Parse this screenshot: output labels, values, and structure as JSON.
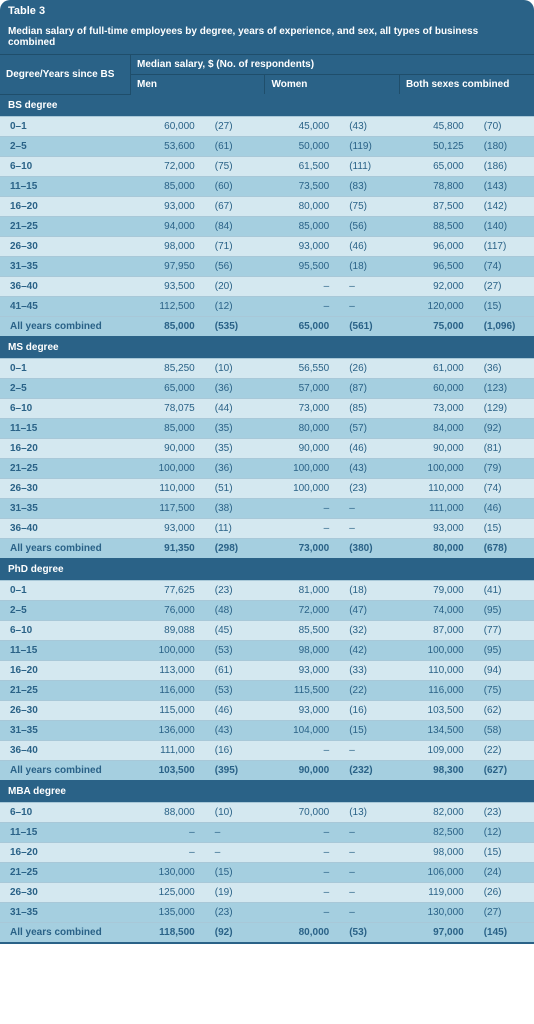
{
  "tableNumber": "Table 3",
  "title": "Median salary of full-time employees by degree, years of experience, and sex, all types of business combined",
  "headerTop": "Median salary, $ (No. of respondents)",
  "col0": "Degree/Years since BS",
  "colGroups": [
    "Men",
    "Women",
    "Both sexes combined"
  ],
  "allYearsLabel": "All years combined",
  "sections": [
    {
      "name": "BS degree",
      "rows": [
        {
          "label": "0–1",
          "m": "60,000",
          "mn": "(27)",
          "w": "45,000",
          "wn": "(43)",
          "b": "45,800",
          "bn": "(70)"
        },
        {
          "label": "2–5",
          "m": "53,600",
          "mn": "(61)",
          "w": "50,000",
          "wn": "(119)",
          "b": "50,125",
          "bn": "(180)"
        },
        {
          "label": "6–10",
          "m": "72,000",
          "mn": "(75)",
          "w": "61,500",
          "wn": "(111)",
          "b": "65,000",
          "bn": "(186)"
        },
        {
          "label": "11–15",
          "m": "85,000",
          "mn": "(60)",
          "w": "73,500",
          "wn": "(83)",
          "b": "78,800",
          "bn": "(143)"
        },
        {
          "label": "16–20",
          "m": "93,000",
          "mn": "(67)",
          "w": "80,000",
          "wn": "(75)",
          "b": "87,500",
          "bn": "(142)"
        },
        {
          "label": "21–25",
          "m": "94,000",
          "mn": "(84)",
          "w": "85,000",
          "wn": "(56)",
          "b": "88,500",
          "bn": "(140)"
        },
        {
          "label": "26–30",
          "m": "98,000",
          "mn": "(71)",
          "w": "93,000",
          "wn": "(46)",
          "b": "96,000",
          "bn": "(117)"
        },
        {
          "label": "31–35",
          "m": "97,950",
          "mn": "(56)",
          "w": "95,500",
          "wn": "(18)",
          "b": "96,500",
          "bn": "(74)"
        },
        {
          "label": "36–40",
          "m": "93,500",
          "mn": "(20)",
          "w": "–",
          "wn": "–",
          "b": "92,000",
          "bn": "(27)"
        },
        {
          "label": "41–45",
          "m": "112,500",
          "mn": "(12)",
          "w": "–",
          "wn": "–",
          "b": "120,000",
          "bn": "(15)"
        }
      ],
      "total": {
        "m": "85,000",
        "mn": "(535)",
        "w": "65,000",
        "wn": "(561)",
        "b": "75,000",
        "bn": "(1,096)"
      }
    },
    {
      "name": "MS degree",
      "rows": [
        {
          "label": "0–1",
          "m": "85,250",
          "mn": "(10)",
          "w": "56,550",
          "wn": "(26)",
          "b": "61,000",
          "bn": "(36)"
        },
        {
          "label": "2–5",
          "m": "65,000",
          "mn": "(36)",
          "w": "57,000",
          "wn": "(87)",
          "b": "60,000",
          "bn": "(123)"
        },
        {
          "label": "6–10",
          "m": "78,075",
          "mn": "(44)",
          "w": "73,000",
          "wn": "(85)",
          "b": "73,000",
          "bn": "(129)"
        },
        {
          "label": "11–15",
          "m": "85,000",
          "mn": "(35)",
          "w": "80,000",
          "wn": "(57)",
          "b": "84,000",
          "bn": "(92)"
        },
        {
          "label": "16–20",
          "m": "90,000",
          "mn": "(35)",
          "w": "90,000",
          "wn": "(46)",
          "b": "90,000",
          "bn": "(81)"
        },
        {
          "label": "21–25",
          "m": "100,000",
          "mn": "(36)",
          "w": "100,000",
          "wn": "(43)",
          "b": "100,000",
          "bn": "(79)"
        },
        {
          "label": "26–30",
          "m": "110,000",
          "mn": "(51)",
          "w": "100,000",
          "wn": "(23)",
          "b": "110,000",
          "bn": "(74)"
        },
        {
          "label": "31–35",
          "m": "117,500",
          "mn": "(38)",
          "w": "–",
          "wn": "–",
          "b": "111,000",
          "bn": "(46)"
        },
        {
          "label": "36–40",
          "m": "93,000",
          "mn": "(11)",
          "w": "–",
          "wn": "–",
          "b": "93,000",
          "bn": "(15)"
        }
      ],
      "total": {
        "m": "91,350",
        "mn": "(298)",
        "w": "73,000",
        "wn": "(380)",
        "b": "80,000",
        "bn": "(678)"
      }
    },
    {
      "name": "PhD degree",
      "rows": [
        {
          "label": "0–1",
          "m": "77,625",
          "mn": "(23)",
          "w": "81,000",
          "wn": "(18)",
          "b": "79,000",
          "bn": "(41)"
        },
        {
          "label": "2–5",
          "m": "76,000",
          "mn": "(48)",
          "w": "72,000",
          "wn": "(47)",
          "b": "74,000",
          "bn": "(95)"
        },
        {
          "label": "6–10",
          "m": "89,088",
          "mn": "(45)",
          "w": "85,500",
          "wn": "(32)",
          "b": "87,000",
          "bn": "(77)"
        },
        {
          "label": "11–15",
          "m": "100,000",
          "mn": "(53)",
          "w": "98,000",
          "wn": "(42)",
          "b": "100,000",
          "bn": "(95)"
        },
        {
          "label": "16–20",
          "m": "113,000",
          "mn": "(61)",
          "w": "93,000",
          "wn": "(33)",
          "b": "110,000",
          "bn": "(94)"
        },
        {
          "label": "21–25",
          "m": "116,000",
          "mn": "(53)",
          "w": "115,500",
          "wn": "(22)",
          "b": "116,000",
          "bn": "(75)"
        },
        {
          "label": "26–30",
          "m": "115,000",
          "mn": "(46)",
          "w": "93,000",
          "wn": "(16)",
          "b": "103,500",
          "bn": "(62)"
        },
        {
          "label": "31–35",
          "m": "136,000",
          "mn": "(43)",
          "w": "104,000",
          "wn": "(15)",
          "b": "134,500",
          "bn": "(58)"
        },
        {
          "label": "36–40",
          "m": "111,000",
          "mn": "(16)",
          "w": "–",
          "wn": "–",
          "b": "109,000",
          "bn": "(22)"
        }
      ],
      "total": {
        "m": "103,500",
        "mn": "(395)",
        "w": "90,000",
        "wn": "(232)",
        "b": "98,300",
        "bn": "(627)"
      }
    },
    {
      "name": "MBA degree",
      "rows": [
        {
          "label": "6–10",
          "m": "88,000",
          "mn": "(10)",
          "w": "70,000",
          "wn": "(13)",
          "b": "82,000",
          "bn": "(23)"
        },
        {
          "label": "11–15",
          "m": "–",
          "mn": "–",
          "w": "–",
          "wn": "–",
          "b": "82,500",
          "bn": "(12)"
        },
        {
          "label": "16–20",
          "m": "–",
          "mn": "–",
          "w": "–",
          "wn": "–",
          "b": "98,000",
          "bn": "(15)"
        },
        {
          "label": "21–25",
          "m": "130,000",
          "mn": "(15)",
          "w": "–",
          "wn": "–",
          "b": "106,000",
          "bn": "(24)"
        },
        {
          "label": "26–30",
          "m": "125,000",
          "mn": "(19)",
          "w": "–",
          "wn": "–",
          "b": "119,000",
          "bn": "(26)"
        },
        {
          "label": "31–35",
          "m": "135,000",
          "mn": "(23)",
          "w": "–",
          "wn": "–",
          "b": "130,000",
          "bn": "(27)"
        }
      ],
      "total": {
        "m": "118,500",
        "mn": "(92)",
        "w": "80,000",
        "wn": "(53)",
        "b": "97,000",
        "bn": "(145)"
      }
    }
  ],
  "colors": {
    "header_bg": "#2a6287",
    "header_fg": "#ffffff",
    "row_light": "#d4e8f0",
    "row_dark": "#a5cfe0",
    "text": "#2a6287",
    "rule": "#a8c8d8"
  }
}
